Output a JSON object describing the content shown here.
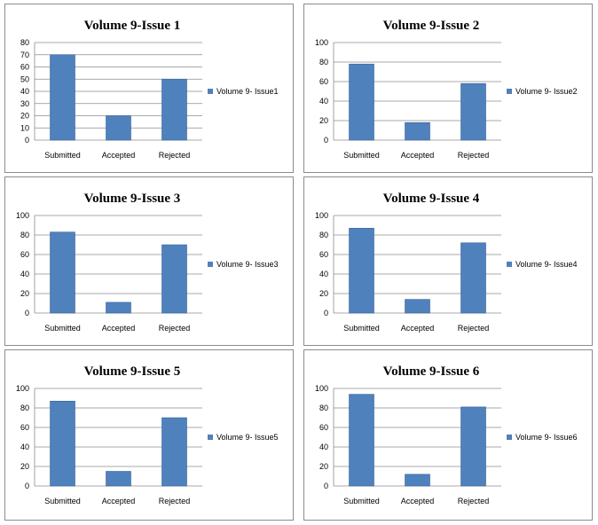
{
  "chart_data": [
    {
      "type": "bar",
      "title": "Volume 9-Issue 1",
      "categories": [
        "Submitted",
        "Accepted",
        "Rejected"
      ],
      "series": [
        {
          "name": "Volume 9- Issue1",
          "values": [
            70,
            20,
            50
          ]
        }
      ],
      "ylim": [
        0,
        80
      ],
      "yticks": [
        0,
        10,
        20,
        30,
        40,
        50,
        60,
        70,
        80
      ],
      "grid": true,
      "legend": "right"
    },
    {
      "type": "bar",
      "title": "Volume 9-Issue 2",
      "categories": [
        "Submitted",
        "Accepted",
        "Rejected"
      ],
      "series": [
        {
          "name": "Volume 9- Issue2",
          "values": [
            78,
            18,
            58
          ]
        }
      ],
      "ylim": [
        0,
        100
      ],
      "yticks": [
        0,
        20,
        40,
        60,
        80,
        100
      ],
      "grid": true,
      "legend": "right"
    },
    {
      "type": "bar",
      "title": "Volume 9-Issue 3",
      "categories": [
        "Submitted",
        "Accepted",
        "Rejected"
      ],
      "series": [
        {
          "name": "Volume 9- Issue3",
          "values": [
            83,
            11,
            70
          ]
        }
      ],
      "ylim": [
        0,
        100
      ],
      "yticks": [
        0,
        20,
        40,
        60,
        80,
        100
      ],
      "grid": true,
      "legend": "right"
    },
    {
      "type": "bar",
      "title": "Volume 9-Issue 4",
      "categories": [
        "Submitted",
        "Accepted",
        "Rejected"
      ],
      "series": [
        {
          "name": "Volume 9- Issue4",
          "values": [
            87,
            14,
            72
          ]
        }
      ],
      "ylim": [
        0,
        100
      ],
      "yticks": [
        0,
        20,
        40,
        60,
        80,
        100
      ],
      "grid": true,
      "legend": "right"
    },
    {
      "type": "bar",
      "title": "Volume 9-Issue 5",
      "categories": [
        "Submitted",
        "Accepted",
        "Rejected"
      ],
      "series": [
        {
          "name": "Volume 9- Issue5",
          "values": [
            87,
            15,
            70
          ]
        }
      ],
      "ylim": [
        0,
        100
      ],
      "yticks": [
        0,
        20,
        40,
        60,
        80,
        100
      ],
      "grid": true,
      "legend": "right"
    },
    {
      "type": "bar",
      "title": "Volume 9-Issue 6",
      "categories": [
        "Submitted",
        "Accepted",
        "Rejected"
      ],
      "series": [
        {
          "name": "Volume 9- Issue6",
          "values": [
            94,
            12,
            81
          ]
        }
      ],
      "ylim": [
        0,
        100
      ],
      "yticks": [
        0,
        20,
        40,
        60,
        80,
        100
      ],
      "grid": true,
      "legend": "right"
    }
  ],
  "colors": {
    "bar": "#4f81bd",
    "bar_edge": "#3a6595",
    "grid": "#8c8c8c",
    "axis": "#8c8c8c"
  }
}
